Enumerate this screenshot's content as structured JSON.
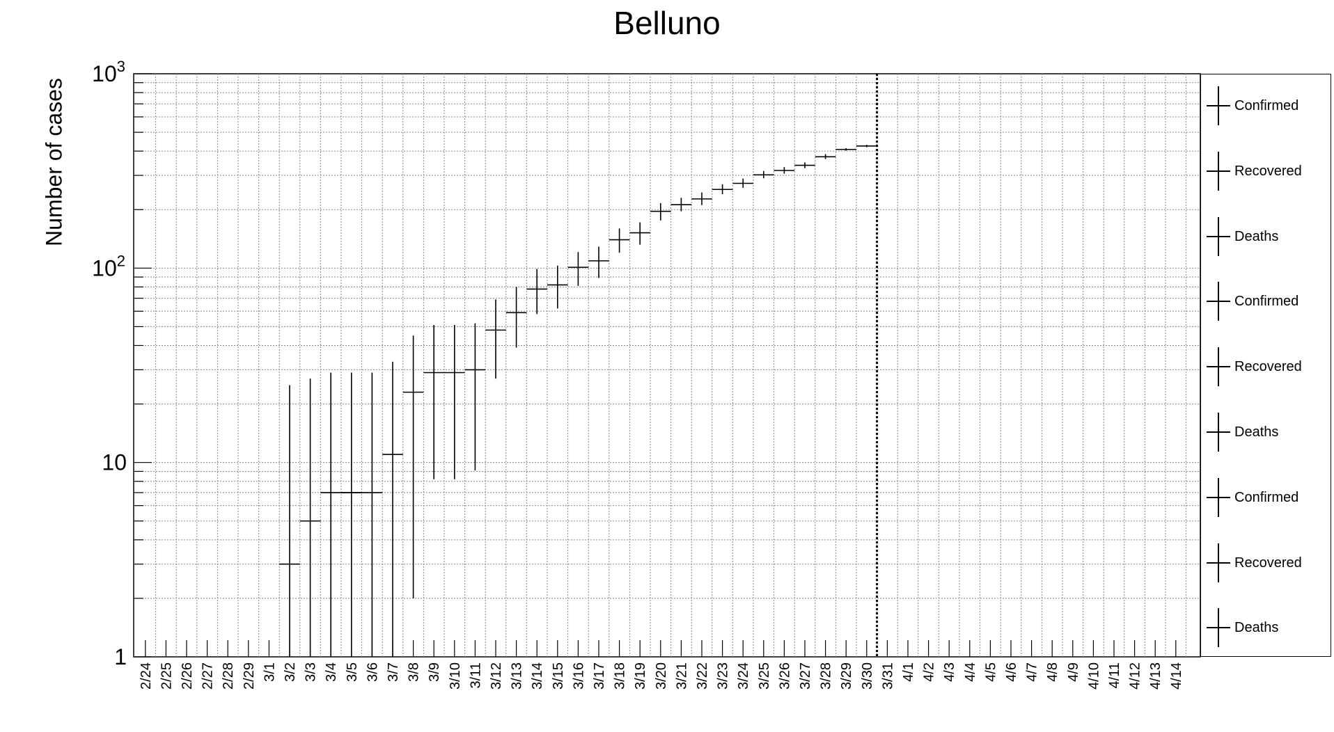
{
  "chart_data": {
    "type": "scatter",
    "title": "Belluno",
    "ylabel": "Number of cases",
    "xlabel": "",
    "y_scale": "log",
    "ylim": [
      1,
      1000
    ],
    "y_ticks": [
      {
        "value": 1,
        "label": "1"
      },
      {
        "value": 10,
        "label": "10"
      },
      {
        "value": 100,
        "label": "10",
        "exp": "2"
      },
      {
        "value": 1000,
        "label": "10",
        "exp": "3"
      }
    ],
    "categories": [
      "2/24",
      "2/25",
      "2/26",
      "2/27",
      "2/28",
      "2/29",
      "3/1",
      "3/2",
      "3/3",
      "3/4",
      "3/5",
      "3/6",
      "3/7",
      "3/8",
      "3/9",
      "3/10",
      "3/11",
      "3/12",
      "3/13",
      "3/14",
      "3/15",
      "3/16",
      "3/17",
      "3/18",
      "3/19",
      "3/20",
      "3/21",
      "3/22",
      "3/23",
      "3/24",
      "3/25",
      "3/26",
      "3/27",
      "3/28",
      "3/29",
      "3/30",
      "3/31",
      "4/1",
      "4/2",
      "4/3",
      "4/4",
      "4/5",
      "4/6",
      "4/7",
      "4/8",
      "4/9",
      "4/10",
      "4/11",
      "4/12",
      "4/13",
      "4/14"
    ],
    "grid": true,
    "legend_position": "right",
    "vertical_marker": "3/30",
    "series": [
      {
        "name": "Confirmed",
        "points": [
          {
            "x": "3/2",
            "y": 3,
            "ylow": 1,
            "yhigh": 25
          },
          {
            "x": "3/3",
            "y": 5,
            "ylow": 1,
            "yhigh": 27
          },
          {
            "x": "3/4",
            "y": 7,
            "ylow": 1,
            "yhigh": 29,
            "xspan": 2
          },
          {
            "x": "3/5",
            "y": 7,
            "ylow": 1,
            "yhigh": 29
          },
          {
            "x": "3/6",
            "y": 7,
            "ylow": 1,
            "yhigh": 29
          },
          {
            "x": "3/7",
            "y": 11,
            "ylow": 1,
            "yhigh": 33
          },
          {
            "x": "3/8",
            "y": 23,
            "ylow": 2,
            "yhigh": 45
          },
          {
            "x": "3/9",
            "y": 29,
            "ylow": 8.2,
            "yhigh": 51
          },
          {
            "x": "3/10",
            "y": 29,
            "ylow": 8.2,
            "yhigh": 51
          },
          {
            "x": "3/11",
            "y": 30,
            "ylow": 9.1,
            "yhigh": 52
          },
          {
            "x": "3/12",
            "y": 48,
            "ylow": 27,
            "yhigh": 69
          },
          {
            "x": "3/13",
            "y": 59,
            "ylow": 39,
            "yhigh": 80
          },
          {
            "x": "3/14",
            "y": 78,
            "ylow": 58,
            "yhigh": 99
          },
          {
            "x": "3/15",
            "y": 82,
            "ylow": 62,
            "yhigh": 103
          },
          {
            "x": "3/16",
            "y": 101,
            "ylow": 81,
            "yhigh": 121
          },
          {
            "x": "3/17",
            "y": 109,
            "ylow": 89,
            "yhigh": 129
          },
          {
            "x": "3/18",
            "y": 140,
            "ylow": 120,
            "yhigh": 160
          },
          {
            "x": "3/19",
            "y": 152,
            "ylow": 132,
            "yhigh": 172
          },
          {
            "x": "3/20",
            "y": 196,
            "ylow": 176,
            "yhigh": 216
          },
          {
            "x": "3/21",
            "y": 212,
            "ylow": 196,
            "yhigh": 230
          },
          {
            "x": "3/22",
            "y": 227,
            "ylow": 211,
            "yhigh": 245
          },
          {
            "x": "3/23",
            "y": 254,
            "ylow": 240,
            "yhigh": 270
          },
          {
            "x": "3/24",
            "y": 273,
            "ylow": 259,
            "yhigh": 289
          },
          {
            "x": "3/25",
            "y": 302,
            "ylow": 290,
            "yhigh": 316
          },
          {
            "x": "3/26",
            "y": 318,
            "ylow": 306,
            "yhigh": 331
          },
          {
            "x": "3/27",
            "y": 338,
            "ylow": 327,
            "yhigh": 350
          },
          {
            "x": "3/28",
            "y": 374,
            "ylow": 364,
            "yhigh": 386
          },
          {
            "x": "3/29",
            "y": 408,
            "ylow": 402,
            "yhigh": 414
          },
          {
            "x": "3/30",
            "y": 425,
            "ylow": 419,
            "yhigh": 431
          }
        ]
      }
    ],
    "legend_entries": [
      "Confirmed",
      "Recovered",
      "Deaths",
      "Confirmed",
      "Recovered",
      "Deaths",
      "Confirmed",
      "Recovered",
      "Deaths"
    ]
  }
}
